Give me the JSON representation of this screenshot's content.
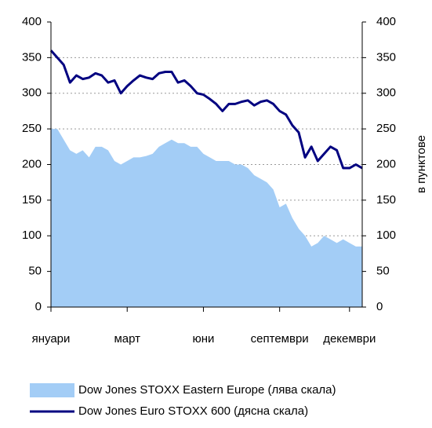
{
  "chart_data": {
    "type": "combo",
    "categories": [
      "януари",
      null,
      null,
      null,
      null,
      null,
      null,
      null,
      null,
      null,
      null,
      null,
      "март",
      null,
      null,
      null,
      null,
      null,
      null,
      null,
      null,
      null,
      null,
      null,
      "юни",
      null,
      null,
      null,
      null,
      null,
      null,
      null,
      null,
      null,
      null,
      null,
      "септември",
      null,
      null,
      null,
      null,
      null,
      null,
      null,
      null,
      null,
      null,
      "декември",
      null,
      null
    ],
    "series": [
      {
        "name": "Dow Jones STOXX Eastern Europe (лява скала)",
        "type": "area",
        "color": "#a3cdf6",
        "values": [
          250,
          250,
          235,
          220,
          215,
          220,
          210,
          225,
          225,
          220,
          205,
          200,
          205,
          210,
          210,
          212,
          215,
          225,
          230,
          235,
          230,
          230,
          225,
          225,
          215,
          210,
          205,
          205,
          205,
          200,
          200,
          195,
          185,
          180,
          175,
          165,
          140,
          145,
          125,
          110,
          100,
          85,
          90,
          100,
          95,
          90,
          95,
          90,
          85,
          85
        ]
      },
      {
        "name": "Dow Jones Euro STOXX 600 (дясна скала)",
        "type": "line",
        "axis": "y2",
        "color": "#000080",
        "values": [
          360,
          350,
          340,
          315,
          325,
          320,
          322,
          328,
          325,
          315,
          318,
          300,
          310,
          318,
          325,
          322,
          320,
          328,
          330,
          330,
          315,
          318,
          310,
          300,
          298,
          292,
          285,
          275,
          285,
          285,
          288,
          290,
          283,
          288,
          290,
          285,
          275,
          270,
          255,
          245,
          210,
          225,
          205,
          215,
          225,
          220,
          195,
          195,
          200,
          195
        ]
      }
    ],
    "ylim": [
      0,
      400
    ],
    "yticks": [
      0,
      50,
      100,
      150,
      200,
      250,
      300,
      350,
      400
    ],
    "y2lim": [
      0,
      400
    ],
    "y2ticks": [
      0,
      50,
      100,
      150,
      200,
      250,
      300,
      350,
      400
    ],
    "y2label": "в пунктове",
    "grid": true
  }
}
